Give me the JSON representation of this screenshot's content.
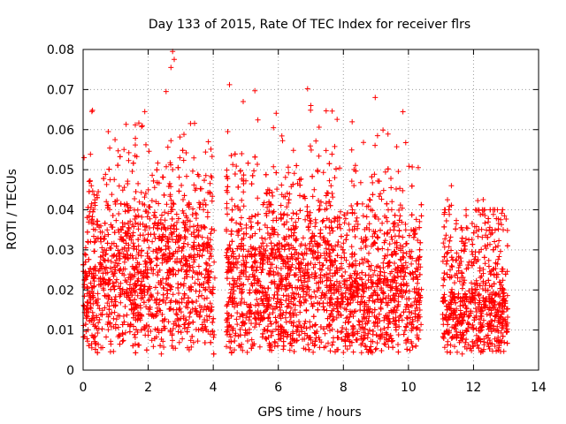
{
  "chart_data": {
    "type": "scatter",
    "title": "Day 133 of 2015, Rate Of TEC Index for receiver flrs",
    "xlabel": "GPS time / hours",
    "ylabel": "ROTI / TECUs",
    "xlim": [
      0,
      14
    ],
    "ylim": [
      0,
      0.08
    ],
    "x_ticks": [
      0,
      2,
      4,
      6,
      8,
      10,
      12,
      14
    ],
    "x_tick_labels": [
      "0",
      "2",
      "4",
      "6",
      "8",
      "10",
      "12",
      "14"
    ],
    "y_ticks": [
      0,
      0.01,
      0.02,
      0.03,
      0.04,
      0.05,
      0.06,
      0.07,
      0.08
    ],
    "y_tick_labels": [
      "0",
      "0.01",
      "0.02",
      "0.03",
      "0.04",
      "0.05",
      "0.06",
      "0.07",
      "0.08"
    ],
    "grid": true,
    "marker": "+",
    "color": "#ff0000",
    "data_gaps_hours": [
      [
        4.05,
        4.4
      ],
      [
        10.4,
        11.05
      ],
      [
        13.05,
        14.0
      ]
    ],
    "peak_points": [
      {
        "x": 0.03,
        "y": 0.053
      },
      {
        "x": 0.98,
        "y": 0.0575
      },
      {
        "x": 1.82,
        "y": 0.061
      },
      {
        "x": 2.55,
        "y": 0.0695
      },
      {
        "x": 2.7,
        "y": 0.0755
      },
      {
        "x": 2.75,
        "y": 0.0795
      },
      {
        "x": 2.8,
        "y": 0.0775
      },
      {
        "x": 3.3,
        "y": 0.0615
      },
      {
        "x": 4.5,
        "y": 0.0712
      },
      {
        "x": 4.92,
        "y": 0.067
      },
      {
        "x": 5.28,
        "y": 0.0697
      },
      {
        "x": 6.9,
        "y": 0.0702
      },
      {
        "x": 7.0,
        "y": 0.066
      },
      {
        "x": 8.98,
        "y": 0.068
      },
      {
        "x": 9.05,
        "y": 0.0585
      },
      {
        "x": 11.32,
        "y": 0.046
      },
      {
        "x": 12.95,
        "y": 0.0385
      }
    ]
  }
}
